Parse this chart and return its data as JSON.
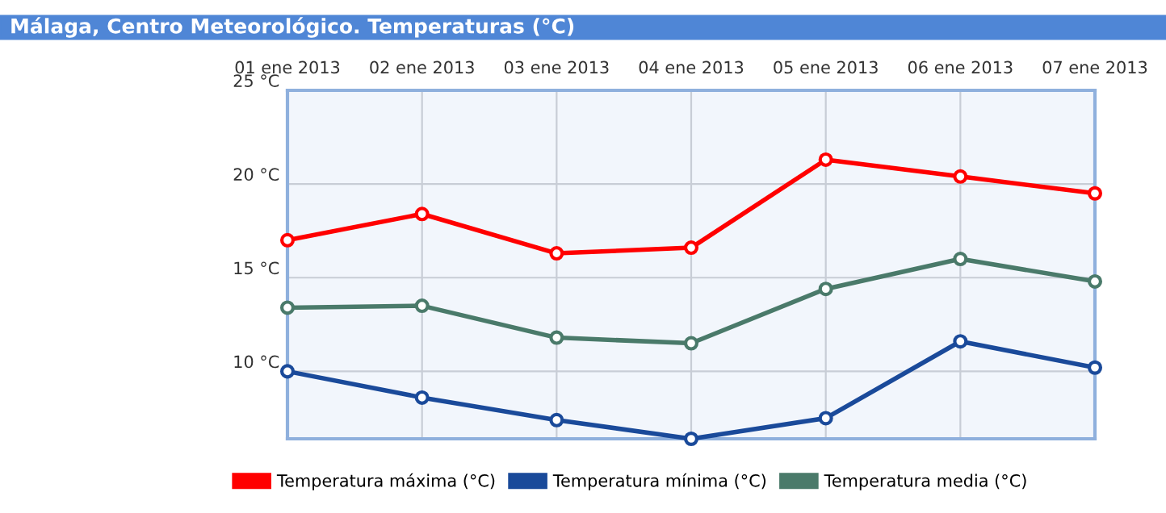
{
  "chart_data": {
    "type": "line",
    "title": "Málaga, Centro Meteorológico. Temperaturas (°C)",
    "categories": [
      "01 ene 2013",
      "02 ene 2013",
      "03 ene 2013",
      "04 ene 2013",
      "05 ene 2013",
      "06 ene 2013",
      "07 ene 2013"
    ],
    "series": [
      {
        "name": "Temperatura máxima (°C)",
        "color": "#ff0000",
        "values": [
          17.0,
          18.4,
          16.3,
          16.6,
          21.3,
          20.4,
          19.5
        ]
      },
      {
        "name": "Temperatura mínima (°C)",
        "color": "#1a4a9a",
        "values": [
          10.0,
          8.6,
          7.4,
          6.4,
          7.5,
          11.6,
          10.2
        ]
      },
      {
        "name": "Temperatura media (°C)",
        "color": "#4a7a6a",
        "values": [
          13.4,
          13.5,
          11.8,
          11.5,
          14.4,
          16.0,
          14.8
        ]
      }
    ],
    "ylim": [
      6.4,
      25
    ],
    "yticks": [
      {
        "value": 10,
        "label": "10 °C"
      },
      {
        "value": 15,
        "label": "15 °C"
      },
      {
        "value": 20,
        "label": "20 °C"
      },
      {
        "value": 25,
        "label": "25 °C"
      }
    ],
    "grid": true,
    "legend": "bottom",
    "marker": "circle",
    "line_style": "solid"
  }
}
